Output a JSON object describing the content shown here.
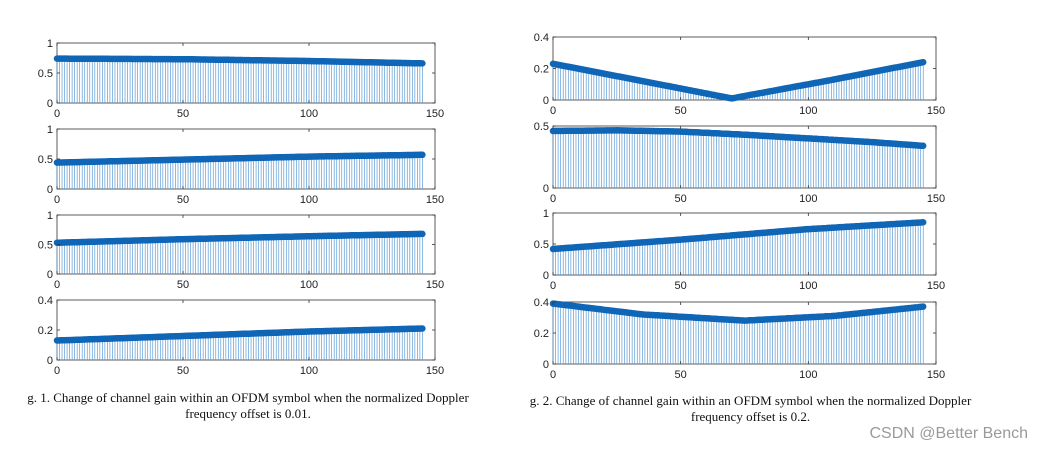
{
  "chart_data": [
    {
      "id": "fig1-sub1",
      "type": "stem",
      "title": "",
      "xlabel": "",
      "ylabel": "",
      "xlim": [
        0,
        150
      ],
      "ylim": [
        0,
        1
      ],
      "xticks": [
        "0",
        "50",
        "100",
        "150"
      ],
      "yticks": [
        "0",
        "0.5",
        "1"
      ],
      "n_points": 146,
      "curve_x": [
        0,
        50,
        100,
        145
      ],
      "curve_y": [
        0.74,
        0.73,
        0.7,
        0.66
      ]
    },
    {
      "id": "fig1-sub2",
      "type": "stem",
      "title": "",
      "xlabel": "",
      "ylabel": "",
      "xlim": [
        0,
        150
      ],
      "ylim": [
        0,
        1
      ],
      "xticks": [
        "0",
        "50",
        "100",
        "150"
      ],
      "yticks": [
        "0",
        "0.5",
        "1"
      ],
      "n_points": 146,
      "curve_x": [
        0,
        50,
        100,
        145
      ],
      "curve_y": [
        0.44,
        0.49,
        0.54,
        0.57
      ]
    },
    {
      "id": "fig1-sub3",
      "type": "stem",
      "title": "",
      "xlabel": "",
      "ylabel": "",
      "xlim": [
        0,
        150
      ],
      "ylim": [
        0,
        1
      ],
      "xticks": [
        "0",
        "50",
        "100",
        "150"
      ],
      "yticks": [
        "0",
        "0.5",
        "1"
      ],
      "n_points": 146,
      "curve_x": [
        0,
        50,
        100,
        145
      ],
      "curve_y": [
        0.53,
        0.59,
        0.64,
        0.68
      ]
    },
    {
      "id": "fig1-sub4",
      "type": "stem",
      "title": "",
      "xlabel": "",
      "ylabel": "",
      "xlim": [
        0,
        150
      ],
      "ylim": [
        0,
        0.4
      ],
      "xticks": [
        "0",
        "50",
        "100",
        "150"
      ],
      "yticks": [
        "0",
        "0.2",
        "0.4"
      ],
      "n_points": 146,
      "curve_x": [
        0,
        50,
        100,
        145
      ],
      "curve_y": [
        0.13,
        0.16,
        0.19,
        0.21
      ]
    },
    {
      "id": "fig2-sub1",
      "type": "stem",
      "title": "",
      "xlabel": "",
      "ylabel": "",
      "xlim": [
        0,
        150
      ],
      "ylim": [
        0,
        0.4
      ],
      "xticks": [
        "0",
        "50",
        "100",
        "150"
      ],
      "yticks": [
        "0",
        "0.2",
        "0.4"
      ],
      "n_points": 146,
      "curve_x": [
        0,
        35,
        70,
        110,
        145
      ],
      "curve_y": [
        0.23,
        0.12,
        0.01,
        0.13,
        0.24
      ]
    },
    {
      "id": "fig2-sub2",
      "type": "stem",
      "title": "",
      "xlabel": "",
      "ylabel": "",
      "xlim": [
        0,
        150
      ],
      "ylim": [
        0,
        0.5
      ],
      "xticks": [
        "0",
        "50",
        "100",
        "150"
      ],
      "yticks": [
        "0",
        "0.5"
      ],
      "n_points": 146,
      "curve_x": [
        0,
        25,
        50,
        75,
        100,
        125,
        145
      ],
      "curve_y": [
        0.46,
        0.465,
        0.455,
        0.43,
        0.4,
        0.37,
        0.34
      ]
    },
    {
      "id": "fig2-sub3",
      "type": "stem",
      "title": "",
      "xlabel": "",
      "ylabel": "",
      "xlim": [
        0,
        150
      ],
      "ylim": [
        0,
        1
      ],
      "xticks": [
        "0",
        "50",
        "100",
        "150"
      ],
      "yticks": [
        "0",
        "0.5",
        "1"
      ],
      "n_points": 146,
      "curve_x": [
        0,
        50,
        100,
        145
      ],
      "curve_y": [
        0.42,
        0.57,
        0.74,
        0.85
      ]
    },
    {
      "id": "fig2-sub4",
      "type": "stem",
      "title": "",
      "xlabel": "",
      "ylabel": "",
      "xlim": [
        0,
        150
      ],
      "ylim": [
        0,
        0.4
      ],
      "xticks": [
        "0",
        "50",
        "100",
        "150"
      ],
      "yticks": [
        "0",
        "0.2",
        "0.4"
      ],
      "n_points": 146,
      "curve_x": [
        0,
        35,
        75,
        110,
        145
      ],
      "curve_y": [
        0.39,
        0.32,
        0.28,
        0.31,
        0.37
      ]
    }
  ],
  "captions": {
    "fig1_line1": "g. 1. Change of channel gain within an OFDM symbol when the normalized Doppler",
    "fig1_line2": "frequency offset is 0.01.",
    "fig2_line1": "g. 2. Change of channel gain within an OFDM symbol when the normalized Doppler",
    "fig2_line2": "frequency offset is 0.2."
  },
  "watermark": "CSDN @Better Bench",
  "colors": {
    "stem": "#5b9bd5",
    "curve": "#0f66b6",
    "axis": "#333333",
    "text": "#222222"
  }
}
